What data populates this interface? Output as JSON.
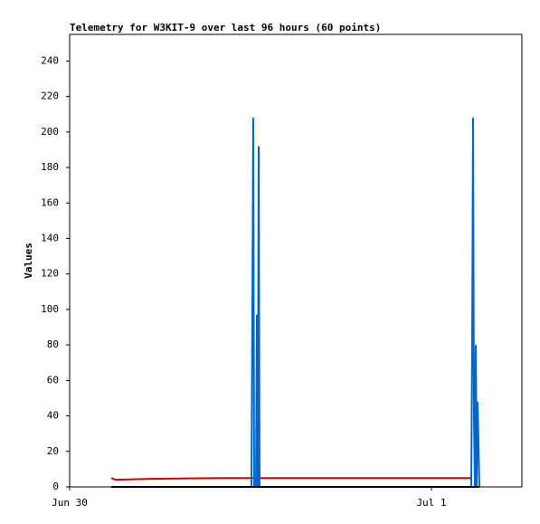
{
  "chart_data": {
    "type": "line",
    "title": "Telemetry for W3KIT-9 over last 96 hours (60 points)",
    "y_label": "Values",
    "x": [
      2.76,
      3.06,
      5.34,
      9.84,
      12.06,
      12.12,
      12.18,
      12.24,
      12.36,
      12.42,
      12.48,
      12.54,
      12.6,
      26.64,
      26.7,
      26.76,
      26.82,
      26.88,
      26.94,
      27.0,
      27.06,
      27.18
    ],
    "series": [
      {
        "color": "#d40000",
        "values": [
          5,
          4,
          4.5,
          5,
          5,
          5,
          5,
          5,
          5,
          5,
          5,
          5,
          5,
          5,
          5,
          null,
          null,
          null,
          null,
          null,
          null,
          null
        ]
      },
      {
        "color": "#0066cc",
        "values": [
          0,
          0,
          0,
          0,
          0,
          104,
          208,
          0,
          0,
          97,
          0,
          192,
          0,
          0,
          81,
          208,
          40,
          0,
          80,
          0,
          48,
          0
        ]
      },
      {
        "color": "#000000",
        "values": [
          0,
          0,
          0,
          0,
          0,
          0,
          0,
          0,
          0,
          0,
          0,
          0,
          0,
          0,
          0,
          0,
          0,
          0,
          0,
          0,
          0,
          0
        ]
      }
    ],
    "xlim": [
      0,
      30
    ],
    "xticks": [
      {
        "value": 0,
        "label": "Jun 30"
      },
      {
        "value": 24,
        "label": "Jul 1"
      }
    ],
    "ylim": [
      0,
      255
    ],
    "yticks": [
      0,
      20,
      40,
      60,
      80,
      100,
      120,
      140,
      160,
      180,
      200,
      220,
      240
    ],
    "grid": false
  }
}
